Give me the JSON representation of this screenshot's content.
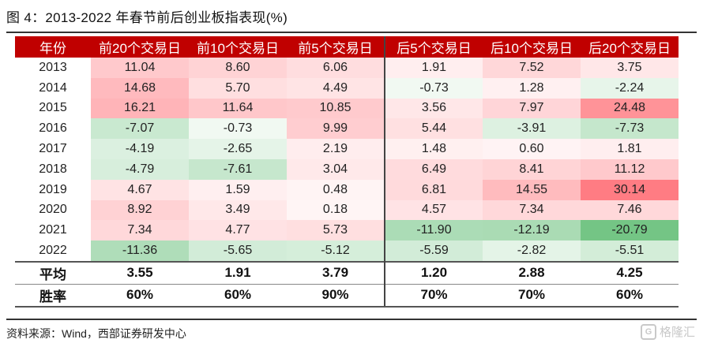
{
  "title": "图 4：2013-2022 年春节前后创业板指表现(%)",
  "headers": [
    "年份",
    "前20个交易日",
    "前10个交易日",
    "前5个交易日",
    "后5个交易日",
    "后10个交易日",
    "后20个交易日"
  ],
  "rows": [
    {
      "year": "2013",
      "values": [
        "11.04",
        "8.60",
        "6.06",
        "1.91",
        "7.52",
        "3.75"
      ]
    },
    {
      "year": "2014",
      "values": [
        "14.68",
        "5.70",
        "4.49",
        "-0.73",
        "1.28",
        "-2.24"
      ]
    },
    {
      "year": "2015",
      "values": [
        "16.21",
        "11.64",
        "10.85",
        "3.56",
        "7.97",
        "24.48"
      ]
    },
    {
      "year": "2016",
      "values": [
        "-7.07",
        "-0.73",
        "9.99",
        "5.44",
        "-3.91",
        "-7.73"
      ]
    },
    {
      "year": "2017",
      "values": [
        "-4.19",
        "-2.65",
        "2.19",
        "1.48",
        "0.60",
        "1.81"
      ]
    },
    {
      "year": "2018",
      "values": [
        "-4.79",
        "-7.61",
        "3.04",
        "6.49",
        "8.41",
        "11.12"
      ]
    },
    {
      "year": "2019",
      "values": [
        "4.67",
        "1.59",
        "0.48",
        "6.81",
        "14.55",
        "30.14"
      ]
    },
    {
      "year": "2020",
      "values": [
        "8.92",
        "3.49",
        "0.18",
        "4.57",
        "7.34",
        "7.46"
      ]
    },
    {
      "year": "2021",
      "values": [
        "7.34",
        "4.77",
        "5.73",
        "-11.90",
        "-12.19",
        "-20.79"
      ]
    },
    {
      "year": "2022",
      "values": [
        "-11.36",
        "-5.65",
        "-5.12",
        "-5.59",
        "-2.82",
        "-5.51"
      ]
    }
  ],
  "summary": [
    {
      "label": "平均",
      "values": [
        "3.55",
        "1.91",
        "3.79",
        "1.20",
        "2.88",
        "4.25"
      ]
    },
    {
      "label": "胜率",
      "values": [
        "60%",
        "60%",
        "90%",
        "70%",
        "70%",
        "60%"
      ]
    }
  ],
  "colors": {
    "header_bg": "#c00000",
    "positive": "#f07070",
    "negative": "#5cb85c"
  },
  "source": "资料来源：Wind，西部证券研发中心",
  "watermark": "格隆汇"
}
